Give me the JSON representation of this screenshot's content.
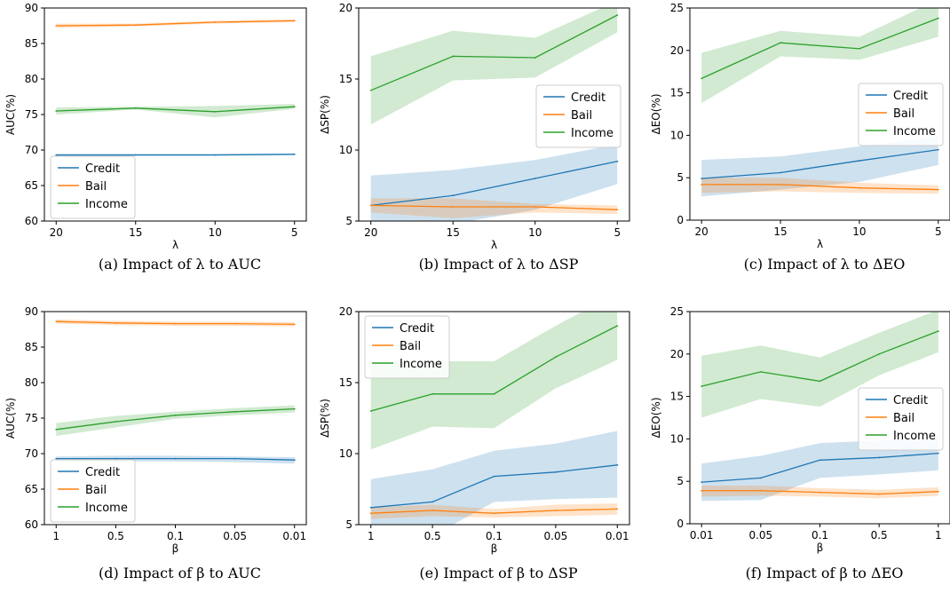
{
  "colors": {
    "Credit": "#1f77b4",
    "Bail": "#ff7f0e",
    "Income": "#2ca02c"
  },
  "chart_data": [
    {
      "type": "line",
      "caption": "(a)  Impact of λ to AUC",
      "xlabel": "λ",
      "ylabel": "AUC(%)",
      "categories": [
        "20",
        "15",
        "10",
        "5"
      ],
      "ylim": [
        60,
        90
      ],
      "yticks": [
        60,
        65,
        70,
        75,
        80,
        85,
        90
      ],
      "grid": false,
      "legend": "lower-left",
      "series": [
        {
          "name": "Credit",
          "values": [
            69.3,
            69.3,
            69.3,
            69.4
          ],
          "lower": [
            69.1,
            69.2,
            69.2,
            69.3
          ],
          "upper": [
            69.5,
            69.5,
            69.5,
            69.5
          ]
        },
        {
          "name": "Bail",
          "values": [
            87.5,
            87.6,
            88.0,
            88.2
          ],
          "lower": [
            87.2,
            87.4,
            87.8,
            88.0
          ],
          "upper": [
            87.8,
            87.8,
            88.2,
            88.4
          ]
        },
        {
          "name": "Income",
          "values": [
            75.5,
            75.9,
            75.4,
            76.1
          ],
          "lower": [
            75.0,
            75.7,
            74.6,
            75.8
          ],
          "upper": [
            76.0,
            76.1,
            76.2,
            76.5
          ]
        }
      ]
    },
    {
      "type": "line",
      "caption": "(b)  Impact of λ to ΔSP",
      "xlabel": "λ",
      "ylabel": "ΔSP(%)",
      "categories": [
        "20",
        "15",
        "10",
        "5"
      ],
      "ylim": [
        5,
        20
      ],
      "yticks": [
        5,
        10,
        15,
        20
      ],
      "grid": false,
      "legend": "right",
      "series": [
        {
          "name": "Credit",
          "values": [
            6.1,
            6.8,
            8.0,
            9.2
          ],
          "lower": [
            4.5,
            4.8,
            5.8,
            7.6
          ],
          "upper": [
            8.2,
            8.6,
            9.3,
            10.4
          ]
        },
        {
          "name": "Bail",
          "values": [
            6.1,
            6.0,
            6.0,
            5.8
          ],
          "lower": [
            5.6,
            5.2,
            5.6,
            5.5
          ],
          "upper": [
            6.6,
            6.6,
            6.2,
            6.1
          ]
        },
        {
          "name": "Income",
          "values": [
            14.2,
            16.6,
            16.5,
            19.5
          ],
          "lower": [
            11.8,
            14.9,
            15.1,
            18.3
          ],
          "upper": [
            16.6,
            18.4,
            17.9,
            20.5
          ]
        }
      ]
    },
    {
      "type": "line",
      "caption": "(c)  Impact of λ to ΔEO",
      "xlabel": "λ",
      "ylabel": "ΔEO(%)",
      "categories": [
        "20",
        "15",
        "10",
        "5"
      ],
      "ylim": [
        0,
        25
      ],
      "yticks": [
        0,
        5,
        10,
        15,
        20,
        25
      ],
      "grid": false,
      "legend": "right",
      "series": [
        {
          "name": "Credit",
          "values": [
            4.9,
            5.6,
            7.0,
            8.3
          ],
          "lower": [
            2.8,
            3.6,
            4.5,
            6.5
          ],
          "upper": [
            7.1,
            7.5,
            8.7,
            9.8
          ]
        },
        {
          "name": "Bail",
          "values": [
            4.2,
            4.2,
            3.8,
            3.6
          ],
          "lower": [
            3.2,
            3.4,
            3.2,
            3.1
          ],
          "upper": [
            5.0,
            5.0,
            4.4,
            4.1
          ]
        },
        {
          "name": "Income",
          "values": [
            16.7,
            20.9,
            20.2,
            23.8
          ],
          "lower": [
            13.8,
            19.3,
            18.9,
            21.6
          ],
          "upper": [
            19.7,
            22.3,
            21.6,
            26.0
          ]
        }
      ]
    },
    {
      "type": "line",
      "caption": "(d)  Impact of β to AUC",
      "xlabel": "β",
      "ylabel": "AUC(%)",
      "categories": [
        "1",
        "0.5",
        "0.1",
        "0.05",
        "0.01"
      ],
      "ylim": [
        60,
        90
      ],
      "yticks": [
        60,
        65,
        70,
        75,
        80,
        85,
        90
      ],
      "grid": false,
      "legend": "lower-left",
      "series": [
        {
          "name": "Credit",
          "values": [
            69.3,
            69.3,
            69.3,
            69.3,
            69.1
          ],
          "lower": [
            68.9,
            68.9,
            68.9,
            68.8,
            68.6
          ],
          "upper": [
            69.6,
            69.7,
            69.7,
            69.6,
            69.5
          ]
        },
        {
          "name": "Bail",
          "values": [
            88.6,
            88.4,
            88.3,
            88.3,
            88.2
          ],
          "lower": [
            88.3,
            88.1,
            88.0,
            88.0,
            87.9
          ],
          "upper": [
            88.9,
            88.7,
            88.6,
            88.6,
            88.5
          ]
        },
        {
          "name": "Income",
          "values": [
            73.4,
            74.5,
            75.4,
            75.9,
            76.3
          ],
          "lower": [
            72.5,
            73.7,
            74.9,
            75.4,
            75.8
          ],
          "upper": [
            74.3,
            75.3,
            75.9,
            76.4,
            76.8
          ]
        }
      ]
    },
    {
      "type": "line",
      "caption": "(e)  Impact of β to ΔSP",
      "xlabel": "β",
      "ylabel": "ΔSP(%)",
      "categories": [
        "1",
        "0.5",
        "0.1",
        "0.05",
        "0.01"
      ],
      "ylim": [
        5,
        20
      ],
      "yticks": [
        5,
        10,
        15,
        20
      ],
      "grid": false,
      "legend": "upper-left",
      "series": [
        {
          "name": "Credit",
          "values": [
            6.2,
            6.6,
            8.4,
            8.7,
            9.2
          ],
          "lower": [
            4.0,
            4.2,
            6.6,
            6.8,
            6.9
          ],
          "upper": [
            8.2,
            8.9,
            10.2,
            10.7,
            11.6
          ]
        },
        {
          "name": "Bail",
          "values": [
            5.8,
            6.0,
            5.8,
            6.0,
            6.1
          ],
          "lower": [
            5.4,
            5.6,
            5.5,
            5.6,
            5.7
          ],
          "upper": [
            6.2,
            6.4,
            6.1,
            6.4,
            6.5
          ]
        },
        {
          "name": "Income",
          "values": [
            13.0,
            14.2,
            14.2,
            16.8,
            19.0
          ],
          "lower": [
            10.3,
            11.9,
            11.8,
            14.6,
            16.6
          ],
          "upper": [
            16.5,
            16.5,
            16.5,
            19.0,
            21.3
          ]
        }
      ]
    },
    {
      "type": "line",
      "caption": "(f)  Impact of β to ΔEO",
      "xlabel": "β",
      "ylabel": "ΔEO(%)",
      "categories": [
        "0.01",
        "0.05",
        "0.1",
        "0.5",
        "1"
      ],
      "ylim": [
        0,
        25
      ],
      "yticks": [
        0,
        5,
        10,
        15,
        20,
        25
      ],
      "grid": false,
      "legend": "right",
      "series": [
        {
          "name": "Credit",
          "values": [
            4.9,
            5.4,
            7.5,
            7.8,
            8.3
          ],
          "lower": [
            2.7,
            2.8,
            5.4,
            5.8,
            6.3
          ],
          "upper": [
            7.1,
            8.0,
            9.5,
            9.8,
            10.3
          ]
        },
        {
          "name": "Bail",
          "values": [
            3.9,
            3.9,
            3.7,
            3.5,
            3.8
          ],
          "lower": [
            3.2,
            3.3,
            3.2,
            3.0,
            3.3
          ],
          "upper": [
            4.5,
            4.5,
            4.2,
            4.0,
            4.3
          ]
        },
        {
          "name": "Income",
          "values": [
            16.2,
            17.9,
            16.8,
            20.0,
            22.7
          ],
          "lower": [
            12.5,
            14.7,
            13.8,
            17.5,
            20.2
          ],
          "upper": [
            19.8,
            21.0,
            19.6,
            22.5,
            25.2
          ]
        }
      ]
    }
  ]
}
